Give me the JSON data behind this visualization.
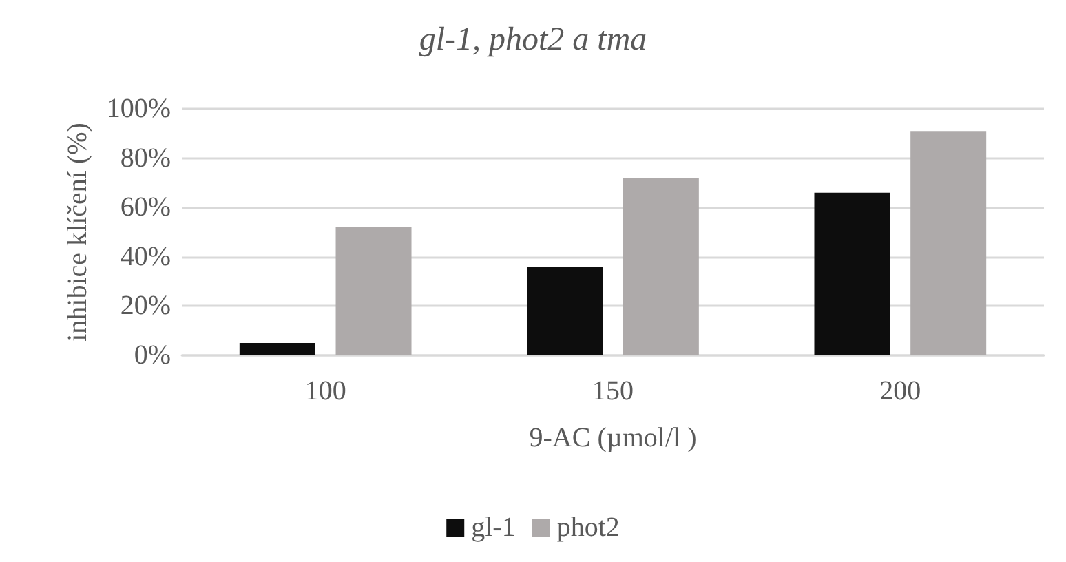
{
  "chart_data": {
    "type": "bar",
    "title": "gl-1, phot2 a tma",
    "xlabel": "9-AC (µmol/l )",
    "ylabel": "inhibice klíčení (%)",
    "categories": [
      "100",
      "150",
      "200"
    ],
    "series": [
      {
        "name": "gl-1",
        "color": "#0d0d0d",
        "values": [
          5,
          36,
          66
        ]
      },
      {
        "name": "phot2",
        "color": "#aeaaaa",
        "values": [
          52,
          72,
          91
        ]
      }
    ],
    "ylim": [
      0,
      100
    ],
    "yticks": [
      {
        "value": 0,
        "label": "0%"
      },
      {
        "value": 20,
        "label": "20%"
      },
      {
        "value": 40,
        "label": "40%"
      },
      {
        "value": 60,
        "label": "60%"
      },
      {
        "value": 80,
        "label": "80%"
      },
      {
        "value": 100,
        "label": "100%"
      }
    ],
    "grid": "y",
    "legend": "bottom"
  }
}
